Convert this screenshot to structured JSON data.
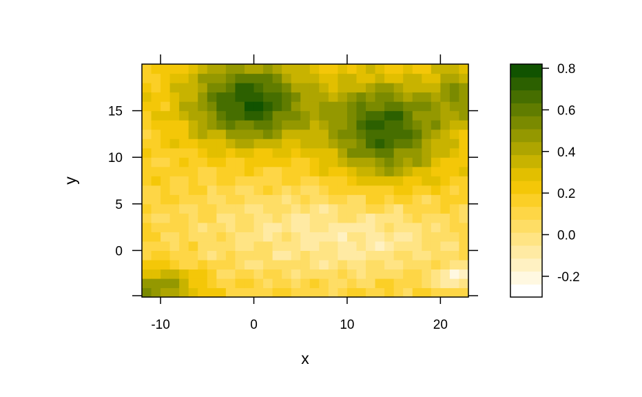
{
  "chart_data": {
    "type": "heatmap",
    "title": "",
    "xlabel": "x",
    "ylabel": "y",
    "xlim": [
      -12,
      23
    ],
    "ylim": [
      -5,
      20
    ],
    "x_ticks": [
      -10,
      0,
      10,
      20
    ],
    "x_tick_labels": [
      "-10",
      "0",
      "10",
      "20"
    ],
    "y_ticks": [
      0,
      5,
      10,
      15
    ],
    "y_tick_labels": [
      "0",
      "5",
      "10",
      "15"
    ],
    "grid": false,
    "legend": "right colorbar",
    "colorbar": {
      "min": -0.3,
      "max": 0.82,
      "ticks": [
        -0.2,
        0.0,
        0.2,
        0.4,
        0.6,
        0.8
      ],
      "tick_labels": [
        "-0.2",
        "0.0",
        "0.2",
        "0.4",
        "0.6",
        "0.8"
      ],
      "colors": [
        "#ffffff",
        "#fff8e1",
        "#fff1c2",
        "#ffeaa3",
        "#ffe484",
        "#fedd65",
        "#fed646",
        "#fbcf26",
        "#f4c708",
        "#e2bf00",
        "#c8b300",
        "#aea500",
        "#949800",
        "#7a8a00",
        "#607c00",
        "#466e00",
        "#2c6000",
        "#115300"
      ]
    },
    "grid_size": {
      "nx": 35,
      "ny": 25,
      "x0": -12,
      "y0": -5,
      "dx": 1,
      "dy": 1
    },
    "z_model": {
      "note": "smooth field: base field plus gaussian bumps (cx, cy, sigma_x, sigma_y, amplitude)",
      "base": 0.17,
      "bumps": [
        [
          -0.5,
          16,
          4.5,
          3.2,
          0.58
        ],
        [
          14,
          13,
          4.3,
          3.6,
          0.55
        ],
        [
          -10,
          -4,
          3,
          1.5,
          0.35
        ],
        [
          22,
          17,
          2,
          2.5,
          0.25
        ],
        [
          3,
          2,
          9,
          4,
          -0.18
        ],
        [
          15,
          1,
          7,
          3,
          -0.15
        ],
        [
          21.5,
          -3,
          1.2,
          0.9,
          -0.32
        ]
      ]
    }
  }
}
